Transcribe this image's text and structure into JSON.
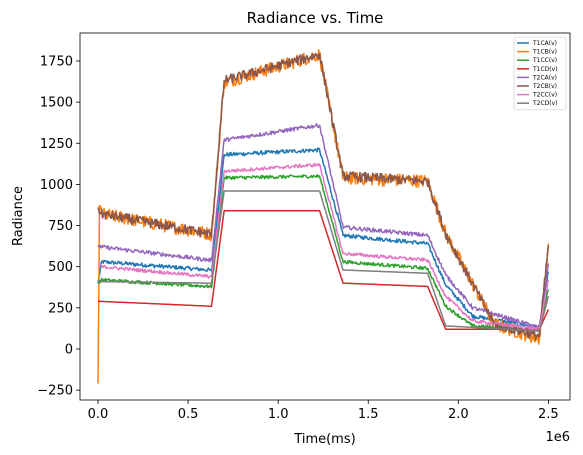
{
  "chart_data": {
    "type": "line",
    "title": "Radiance vs. Time",
    "xlabel": "Time(ms)",
    "ylabel": "Radiance",
    "x_offset_label": "1e6",
    "xlim": [
      -100000,
      2620000
    ],
    "ylim": [
      -310,
      1920
    ],
    "x_ticks": [
      0,
      500000,
      1000000,
      1500000,
      2000000,
      2500000
    ],
    "x_tick_labels": [
      "0.0",
      "0.5",
      "1.0",
      "1.5",
      "2.0",
      "2.5"
    ],
    "y_ticks": [
      -250,
      0,
      250,
      500,
      750,
      1000,
      1250,
      1500,
      1750
    ],
    "y_tick_labels": [
      "−250",
      "0",
      "250",
      "500",
      "750",
      "1000",
      "1250",
      "1500",
      "1750"
    ],
    "grid": false,
    "legend_position": "top-right",
    "series": [
      {
        "name": "T1CA(v)",
        "color": "#1f77b4",
        "noise": 12,
        "x": [
          0,
          20000,
          620000,
          630000,
          700000,
          1230000,
          1360000,
          1830000,
          1930000,
          2080000,
          2450000,
          2500000
        ],
        "y": [
          400,
          530,
          480,
          470,
          1180,
          1210,
          690,
          640,
          390,
          200,
          130,
          470
        ]
      },
      {
        "name": "T1CB(v)",
        "color": "#ff7f0e",
        "noise": 40,
        "x": [
          0,
          8000,
          20000,
          620000,
          630000,
          700000,
          1230000,
          1360000,
          1830000,
          1930000,
          2200000,
          2450000,
          2500000
        ],
        "y": [
          -210,
          860,
          820,
          700,
          690,
          1620,
          1790,
          1040,
          1020,
          700,
          150,
          60,
          640
        ]
      },
      {
        "name": "T1CC(v)",
        "color": "#2ca02c",
        "noise": 10,
        "x": [
          0,
          20000,
          620000,
          630000,
          700000,
          1230000,
          1360000,
          1830000,
          1930000,
          2080000,
          2450000,
          2500000
        ],
        "y": [
          400,
          420,
          380,
          375,
          1040,
          1050,
          530,
          490,
          260,
          140,
          115,
          360
        ]
      },
      {
        "name": "T1CD(v)",
        "color": "#d62728",
        "noise": 0,
        "x": [
          0,
          620000,
          630000,
          700000,
          1230000,
          1360000,
          1830000,
          1930000,
          2450000,
          2500000
        ],
        "y": [
          290,
          260,
          260,
          840,
          840,
          400,
          380,
          120,
          120,
          240
        ]
      },
      {
        "name": "T2CA(v)",
        "color": "#9467bd",
        "noise": 12,
        "x": [
          0,
          20000,
          620000,
          630000,
          700000,
          1230000,
          1360000,
          1830000,
          1930000,
          2080000,
          2450000,
          2500000
        ],
        "y": [
          630,
          620,
          540,
          540,
          1270,
          1360,
          740,
          690,
          450,
          250,
          130,
          520
        ]
      },
      {
        "name": "T2CB(v)",
        "color": "#8c564b",
        "noise": 30,
        "x": [
          0,
          20000,
          620000,
          630000,
          700000,
          1230000,
          1360000,
          1830000,
          1930000,
          2200000,
          2450000,
          2500000
        ],
        "y": [
          860,
          820,
          700,
          690,
          1630,
          1790,
          1050,
          1020,
          700,
          150,
          80,
          630
        ]
      },
      {
        "name": "T2CC(v)",
        "color": "#e377c2",
        "noise": 10,
        "x": [
          0,
          20000,
          620000,
          630000,
          700000,
          1230000,
          1360000,
          1830000,
          1930000,
          2080000,
          2450000,
          2500000
        ],
        "y": [
          520,
          500,
          440,
          440,
          1080,
          1120,
          580,
          540,
          320,
          170,
          120,
          420
        ]
      },
      {
        "name": "T2CD(v)",
        "color": "#7f7f7f",
        "noise": 0,
        "x": [
          0,
          620000,
          630000,
          700000,
          1230000,
          1360000,
          1830000,
          1930000,
          2450000,
          2500000
        ],
        "y": [
          410,
          400,
          400,
          960,
          960,
          480,
          460,
          140,
          110,
          320
        ]
      }
    ]
  }
}
